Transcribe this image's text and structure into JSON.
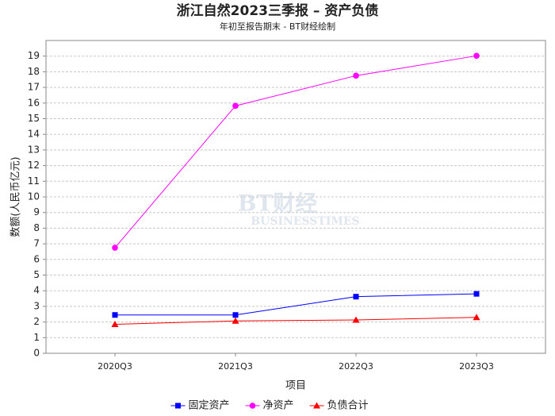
{
  "chart_data": {
    "type": "line",
    "title": "浙江自然2023三季报 – 资产负债",
    "subtitle": "年初至报告期末 - BT财经绘制",
    "watermark": "BT财经",
    "watermark_sub": "BUSINESSTIMES",
    "y_label": "数额(人民币亿元)",
    "x_label": "项目",
    "categories": [
      "2020Q3",
      "2021Q3",
      "2022Q3",
      "2023Q3"
    ],
    "series": [
      {
        "name": "固定资产",
        "color": "#0000ff",
        "marker": "square",
        "values": [
          2.45,
          2.45,
          3.62,
          3.8
        ]
      },
      {
        "name": "净资产",
        "color": "#ff00ff",
        "marker": "circle",
        "values": [
          6.75,
          15.82,
          17.75,
          19.02
        ]
      },
      {
        "name": "负债合计",
        "color": "#ff0000",
        "marker": "triangle",
        "values": [
          1.85,
          2.07,
          2.13,
          2.3
        ]
      }
    ],
    "ylim": [
      0,
      20
    ],
    "yticks": [
      0,
      1,
      2,
      3,
      4,
      5,
      6,
      7,
      8,
      9,
      10,
      11,
      12,
      13,
      14,
      15,
      16,
      17,
      18,
      19
    ],
    "grid": true,
    "legend": "bottom"
  }
}
